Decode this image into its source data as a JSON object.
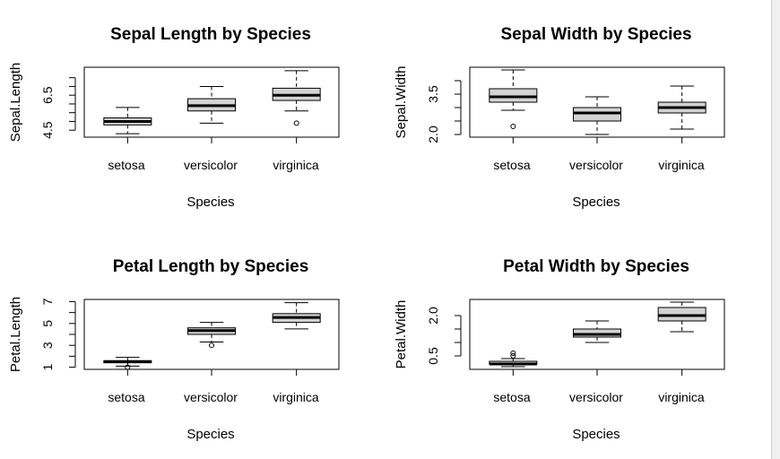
{
  "chart_data": [
    {
      "type": "box",
      "title": "Sepal Length by Species",
      "xlabel": "Species",
      "ylabel": "Sepal.Length",
      "categories": [
        "setosa",
        "versicolor",
        "virginica"
      ],
      "yticks": [
        4.5,
        5.0,
        5.5,
        6.0,
        6.5,
        7.0,
        7.5
      ],
      "yticklabels": [
        "4.5",
        "",
        "",
        "",
        "6.5",
        "",
        ""
      ],
      "ylim": [
        4.1,
        8.1
      ],
      "boxes": [
        {
          "min": 4.3,
          "q1": 4.8,
          "median": 5.0,
          "q3": 5.2,
          "max": 5.8,
          "outliers": []
        },
        {
          "min": 4.9,
          "q1": 5.6,
          "median": 5.9,
          "q3": 6.3,
          "max": 7.0,
          "outliers": []
        },
        {
          "min": 5.6,
          "q1": 6.2,
          "median": 6.5,
          "q3": 6.9,
          "max": 7.9,
          "outliers": [
            4.9
          ]
        }
      ]
    },
    {
      "type": "box",
      "title": "Sepal Width by Species",
      "xlabel": "Species",
      "ylabel": "Sepal.Width",
      "categories": [
        "setosa",
        "versicolor",
        "virginica"
      ],
      "yticks": [
        2.0,
        2.5,
        3.0,
        3.5,
        4.0
      ],
      "yticklabels": [
        "2.0",
        "",
        "",
        "3.5",
        ""
      ],
      "ylim": [
        1.9,
        4.5
      ],
      "boxes": [
        {
          "min": 2.9,
          "q1": 3.2,
          "median": 3.4,
          "q3": 3.7,
          "max": 4.4,
          "outliers": [
            2.3
          ]
        },
        {
          "min": 2.0,
          "q1": 2.5,
          "median": 2.8,
          "q3": 3.0,
          "max": 3.4,
          "outliers": []
        },
        {
          "min": 2.2,
          "q1": 2.8,
          "median": 3.0,
          "q3": 3.2,
          "max": 3.8,
          "outliers": []
        }
      ]
    },
    {
      "type": "box",
      "title": "Petal Length by Species",
      "xlabel": "Species",
      "ylabel": "Petal.Length",
      "categories": [
        "setosa",
        "versicolor",
        "virginica"
      ],
      "yticks": [
        1,
        2,
        3,
        4,
        5,
        6,
        7
      ],
      "yticklabels": [
        "1",
        "",
        "3",
        "",
        "5",
        "",
        "7"
      ],
      "ylim": [
        0.8,
        7.2
      ],
      "boxes": [
        {
          "min": 1.1,
          "q1": 1.4,
          "median": 1.5,
          "q3": 1.6,
          "max": 1.9,
          "outliers": [
            1.0
          ]
        },
        {
          "min": 3.3,
          "q1": 4.0,
          "median": 4.35,
          "q3": 4.6,
          "max": 5.1,
          "outliers": [
            3.0
          ]
        },
        {
          "min": 4.5,
          "q1": 5.1,
          "median": 5.55,
          "q3": 5.9,
          "max": 6.9,
          "outliers": []
        }
      ]
    },
    {
      "type": "box",
      "title": "Petal Width by Species",
      "xlabel": "Species",
      "ylabel": "Petal.Width",
      "categories": [
        "setosa",
        "versicolor",
        "virginica"
      ],
      "yticks": [
        0.5,
        1.0,
        1.5,
        2.0
      ],
      "yticklabels": [
        "0.5",
        "",
        "",
        "2.0"
      ],
      "ylim": [
        0.0,
        2.6
      ],
      "boxes": [
        {
          "min": 0.1,
          "q1": 0.2,
          "median": 0.2,
          "q3": 0.3,
          "max": 0.4,
          "outliers": [
            0.5,
            0.6
          ]
        },
        {
          "min": 1.0,
          "q1": 1.2,
          "median": 1.3,
          "q3": 1.5,
          "max": 1.8,
          "outliers": []
        },
        {
          "min": 1.4,
          "q1": 1.8,
          "median": 2.0,
          "q3": 2.3,
          "max": 2.5,
          "outliers": []
        }
      ]
    }
  ],
  "colors": {
    "box_fill": "#d3d3d3",
    "line": "#000000",
    "background": "#ffffff"
  }
}
